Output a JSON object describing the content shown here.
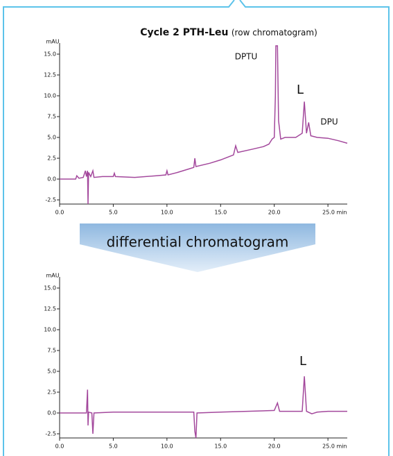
{
  "banner": "differential chromatogram",
  "chart_data": [
    {
      "type": "line",
      "title": "Cycle 2 PTH-Leu",
      "subtitle": "(row chromatogram)",
      "ylabel": "mAU",
      "color": "#a3489c",
      "annotations": [
        "DPTU",
        "L",
        "DPU"
      ],
      "x": [
        0,
        1.5,
        1.6,
        1.8,
        2.2,
        2.4,
        2.5,
        2.6,
        2.65,
        2.7,
        2.9,
        3.1,
        3.2,
        4.0,
        5.0,
        5.1,
        5.2,
        7.0,
        9.0,
        9.9,
        10.0,
        10.1,
        11.0,
        12.0,
        12.5,
        12.6,
        12.7,
        14.0,
        15.0,
        16.2,
        16.4,
        16.6,
        18.0,
        19.0,
        19.5,
        19.8,
        20.0,
        20.1,
        20.15,
        20.3,
        20.4,
        20.6,
        21.0,
        22.0,
        22.6,
        22.8,
        23.0,
        23.2,
        23.4,
        24.0,
        25.0,
        26.0,
        26.8
      ],
      "values": [
        0,
        0,
        0.4,
        0.1,
        0.2,
        1.0,
        0.3,
        1.0,
        -3,
        0.8,
        0.3,
        1.0,
        0.2,
        0.3,
        0.3,
        0.7,
        0.3,
        0.2,
        0.4,
        0.5,
        1.0,
        0.5,
        0.8,
        1.2,
        1.4,
        2.5,
        1.5,
        1.9,
        2.3,
        2.9,
        4.0,
        3.2,
        3.6,
        3.9,
        4.2,
        4.8,
        5.0,
        10,
        16,
        16,
        7,
        4.8,
        5.0,
        5.0,
        5.5,
        9.3,
        5.5,
        6.8,
        5.2,
        5.0,
        4.9,
        4.6,
        4.3
      ],
      "xlim": [
        0,
        26.8
      ],
      "xticks": [
        {
          "value": 0,
          "label": "0.0"
        },
        {
          "value": 5,
          "label": "5.0"
        },
        {
          "value": 10,
          "label": "10.0"
        },
        {
          "value": 15,
          "label": "15.0"
        },
        {
          "value": 20,
          "label": "20.0"
        },
        {
          "value": 25,
          "label": "25.0 min"
        }
      ],
      "ylim": [
        -3,
        16
      ],
      "yticks": [
        -2.5,
        {
          "value": 0,
          "label": "0.0"
        },
        2.5,
        {
          "value": 5,
          "label": "5.0"
        },
        7.5,
        {
          "value": 10,
          "label": "10.0"
        },
        12.5,
        {
          "value": 15,
          "label": "15.0"
        }
      ]
    },
    {
      "type": "line",
      "ylabel": "mAU",
      "color": "#a3489c",
      "annotations": [
        "L"
      ],
      "x": [
        0,
        2.5,
        2.6,
        2.65,
        2.7,
        3.0,
        3.1,
        3.2,
        5.0,
        10.0,
        12.5,
        12.6,
        12.7,
        12.8,
        15.0,
        20.0,
        20.3,
        20.5,
        22.6,
        22.8,
        23.0,
        23.5,
        24.0,
        25.0,
        26.0,
        26.8
      ],
      "values": [
        0,
        0,
        2.8,
        -1.5,
        0.1,
        0,
        -2.5,
        0,
        0.1,
        0.1,
        0.1,
        -2.2,
        -3,
        0,
        0.1,
        0.3,
        1.2,
        0.2,
        0.2,
        4.4,
        0.2,
        -0.1,
        0.1,
        0.2,
        0.2,
        0.2
      ],
      "xlim": [
        0,
        26.8
      ],
      "xticks": [
        {
          "value": 0,
          "label": "0.0"
        },
        {
          "value": 5,
          "label": "5.0"
        },
        {
          "value": 10,
          "label": "10.0"
        },
        {
          "value": 15,
          "label": "15.0"
        },
        {
          "value": 20,
          "label": "20.0"
        },
        {
          "value": 25,
          "label": "25.0 min"
        }
      ],
      "ylim": [
        -3,
        16
      ],
      "yticks": [
        -2.5,
        {
          "value": 0,
          "label": "0.0"
        },
        2.5,
        {
          "value": 5,
          "label": "5.0"
        },
        7.5,
        {
          "value": 10,
          "label": "10.0"
        },
        12.5,
        {
          "value": 15,
          "label": "15.0"
        }
      ]
    }
  ]
}
